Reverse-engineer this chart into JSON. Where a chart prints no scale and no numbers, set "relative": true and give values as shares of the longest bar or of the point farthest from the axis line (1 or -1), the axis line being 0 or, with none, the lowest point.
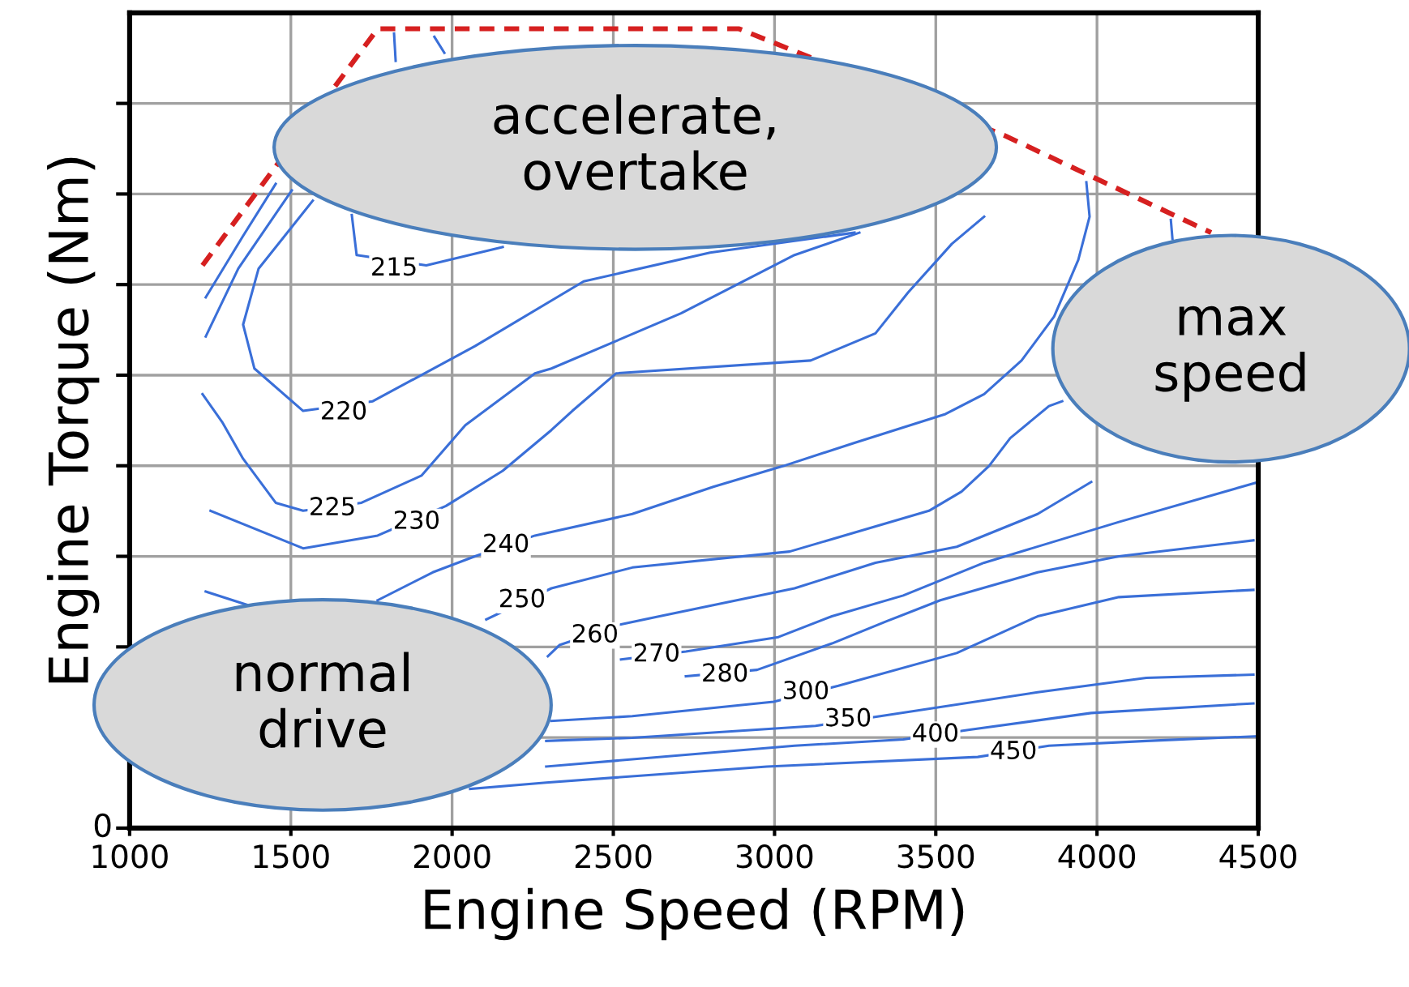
{
  "chart_data": {
    "type": "line",
    "relative": true,
    "xlabel": "Engine Speed (RPM)",
    "ylabel": "Engine Torque (Nm)",
    "xlim": [
      1000,
      4500
    ],
    "xticks": [
      1000,
      1500,
      2000,
      2500,
      3000,
      3500,
      4000,
      4500
    ],
    "grid": true,
    "series": [
      {
        "color": "#d62020",
        "line_style": "dashed",
        "x": [
          1226,
          1769,
          2890,
          3716,
          4354
        ],
        "values": [
          0.704,
          1.0,
          1.0,
          0.866,
          0.745
        ]
      },
      {
        "color": "#3a6fd8",
        "x": [
          1236,
          1352,
          1453
        ],
        "values": [
          0.664,
          0.741,
          0.806
        ]
      },
      {
        "color": "#3a6fd8",
        "x": [
          1236,
          1337,
          1503
        ],
        "values": [
          0.615,
          0.7,
          0.798
        ]
      },
      {
        "color": "#3a6fd8",
        "x": [
          1689,
          1704,
          1920,
          2157
        ],
        "values": [
          0.767,
          0.717,
          0.704,
          0.727
        ]
      },
      {
        "color": "#3a6fd8",
        "x": [
          1568,
          1400,
          1352,
          1387,
          1538,
          1754,
          2071,
          2408,
          2800,
          3248
        ],
        "values": [
          0.785,
          0.7,
          0.63,
          0.575,
          0.522,
          0.534,
          0.603,
          0.684,
          0.72,
          0.745
        ]
      },
      {
        "color": "#3a6fd8",
        "x": [
          1226,
          1287,
          1352,
          1453,
          1538,
          1719,
          1905,
          2041,
          2257,
          2308,
          2710,
          3062,
          3263
        ],
        "values": [
          0.543,
          0.508,
          0.462,
          0.407,
          0.397,
          0.407,
          0.441,
          0.504,
          0.569,
          0.575,
          0.644,
          0.717,
          0.745
        ]
      },
      {
        "color": "#3a6fd8",
        "x": [
          1251,
          1538,
          1769,
          1981,
          2157,
          2308,
          2373,
          2509,
          3112,
          3313,
          3414,
          3550,
          3650
        ],
        "values": [
          0.397,
          0.35,
          0.366,
          0.403,
          0.447,
          0.498,
          0.522,
          0.569,
          0.585,
          0.619,
          0.67,
          0.731,
          0.765
        ]
      },
      {
        "color": "#3a6fd8",
        "x": [
          1236,
          1367
        ],
        "values": [
          0.296,
          0.279
        ]
      },
      {
        "color": "#3a6fd8",
        "x": [
          1769,
          1940,
          2071,
          2257,
          2559,
          2810,
          3027,
          3248,
          3530,
          3650,
          3766,
          3867,
          3942,
          3977,
          3967
        ],
        "values": [
          0.285,
          0.32,
          0.34,
          0.366,
          0.393,
          0.427,
          0.453,
          0.482,
          0.518,
          0.543,
          0.585,
          0.64,
          0.711,
          0.765,
          0.808
        ]
      },
      {
        "color": "#3a6fd8",
        "x": [
          2106,
          2308,
          2559,
          3047,
          3479,
          3580,
          3665,
          3731,
          3851,
          3892
        ],
        "values": [
          0.261,
          0.3,
          0.326,
          0.346,
          0.397,
          0.421,
          0.453,
          0.488,
          0.528,
          0.534
        ]
      },
      {
        "color": "#3a6fd8",
        "x": [
          2297,
          2333,
          2524,
          2810,
          3062,
          3313,
          3565,
          3816,
          3982
        ],
        "values": [
          0.215,
          0.229,
          0.255,
          0.279,
          0.3,
          0.332,
          0.352,
          0.393,
          0.433
        ]
      },
      {
        "color": "#3a6fd8",
        "x": [
          2524,
          2725,
          3012,
          3178,
          3399,
          3650,
          4068,
          4500
        ],
        "values": [
          0.211,
          0.221,
          0.239,
          0.265,
          0.291,
          0.332,
          0.383,
          0.433
        ]
      },
      {
        "color": "#3a6fd8",
        "x": [
          2725,
          2946,
          3178,
          3349,
          3514,
          3816,
          4068,
          4485
        ],
        "values": [
          0.19,
          0.198,
          0.231,
          0.259,
          0.285,
          0.32,
          0.34,
          0.36
        ]
      },
      {
        "color": "#3a6fd8",
        "x": [
          2308,
          2559,
          2997,
          3198,
          3565,
          3816,
          4068,
          4485
        ],
        "values": [
          0.134,
          0.14,
          0.158,
          0.178,
          0.219,
          0.265,
          0.289,
          0.298
        ]
      },
      {
        "color": "#3a6fd8",
        "x": [
          2292,
          2559,
          3127,
          3328,
          3816,
          4153,
          4485
        ],
        "values": [
          0.109,
          0.113,
          0.128,
          0.14,
          0.17,
          0.188,
          0.192
        ]
      },
      {
        "color": "#3a6fd8",
        "x": [
          2292,
          3062,
          3399,
          3605,
          3982,
          4485
        ],
        "values": [
          0.077,
          0.103,
          0.111,
          0.123,
          0.144,
          0.156
        ]
      },
      {
        "color": "#3a6fd8",
        "x": [
          2056,
          2292,
          2976,
          3630,
          3851,
          4153,
          4500
        ],
        "values": [
          0.049,
          0.057,
          0.077,
          0.089,
          0.103,
          0.109,
          0.115
        ]
      },
      {
        "color": "#3a6fd8",
        "x": [
          1820,
          1825
        ],
        "values": [
          0.994,
          0.96
        ]
      },
      {
        "color": "#3a6fd8",
        "x": [
          1945,
          1976
        ],
        "values": [
          0.99,
          0.97
        ]
      },
      {
        "color": "#3a6fd8",
        "x": [
          4229,
          4234
        ],
        "values": [
          0.761,
          0.737
        ]
      }
    ],
    "annotations": [
      {
        "text": "215",
        "x": 1820,
        "y": 0.7
      },
      {
        "text": "220",
        "x": 1664,
        "y": 0.52
      },
      {
        "text": "225",
        "x": 1629,
        "y": 0.4
      },
      {
        "text": "230",
        "x": 1890,
        "y": 0.383
      },
      {
        "text": "240",
        "x": 2167,
        "y": 0.354
      },
      {
        "text": "250",
        "x": 2217,
        "y": 0.285
      },
      {
        "text": "260",
        "x": 2443,
        "y": 0.241
      },
      {
        "text": "270",
        "x": 2634,
        "y": 0.217
      },
      {
        "text": "280",
        "x": 2846,
        "y": 0.192
      },
      {
        "text": "300",
        "x": 3097,
        "y": 0.17
      },
      {
        "text": "350",
        "x": 3228,
        "y": 0.136
      },
      {
        "text": "400",
        "x": 3499,
        "y": 0.117
      },
      {
        "text": "450",
        "x": 3741,
        "y": 0.095
      },
      "accelerate,\novertake",
      "max\nspeed",
      "normal\ndrive",
      "0"
    ]
  }
}
